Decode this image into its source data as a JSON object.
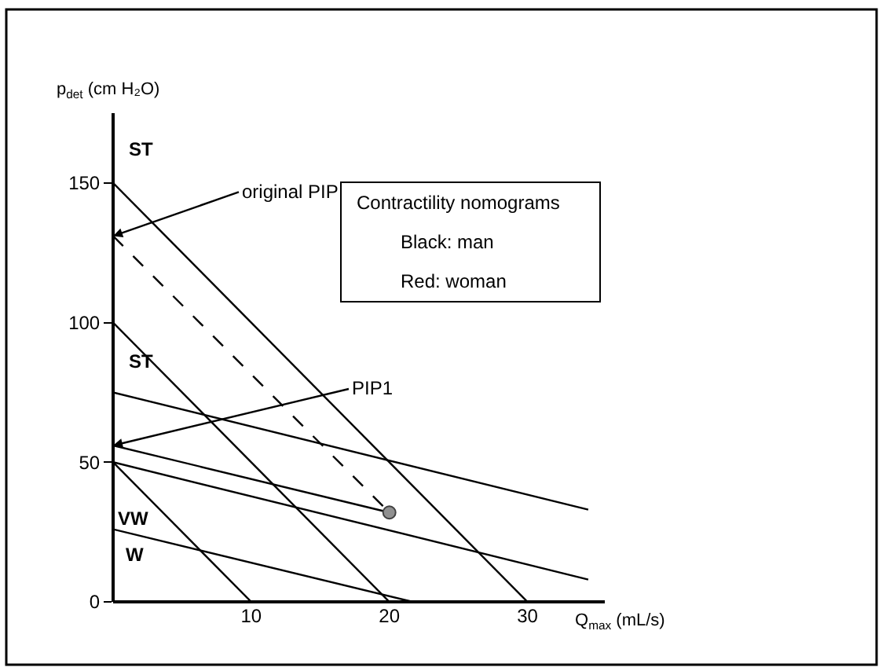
{
  "chart_data": {
    "type": "line",
    "xlabel": "Q$_{max}$ (mL/s)",
    "ylabel": "p$_{det}$ (cm H₂O)",
    "xlim": [
      0,
      35.6
    ],
    "ylim": [
      0,
      175
    ],
    "xticks": [
      10,
      20,
      30
    ],
    "yticks": [
      0,
      50,
      100,
      150
    ],
    "series": [
      {
        "type": "line",
        "color": "#000000",
        "line_style": "solid",
        "marker": "none",
        "x": [
          0,
          30
        ],
        "values": [
          150,
          0
        ]
      },
      {
        "type": "line",
        "color": "#000000",
        "line_style": "solid",
        "marker": "none",
        "x": [
          0,
          20
        ],
        "values": [
          100,
          0
        ]
      },
      {
        "type": "line",
        "color": "#000000",
        "line_style": "solid",
        "marker": "none",
        "x": [
          0,
          10
        ],
        "values": [
          50,
          0
        ]
      },
      {
        "type": "line",
        "color": "#000000",
        "line_style": "solid",
        "marker": "none",
        "x": [
          0,
          34.4
        ],
        "values": [
          75,
          33
        ]
      },
      {
        "type": "line",
        "color": "#000000",
        "line_style": "solid",
        "marker": "none",
        "x": [
          0,
          34.4
        ],
        "values": [
          50,
          8
        ]
      },
      {
        "type": "line",
        "color": "#000000",
        "line_style": "solid",
        "marker": "none",
        "x": [
          0,
          21.7
        ],
        "values": [
          26,
          0
        ]
      },
      {
        "type": "line",
        "color": "#000000",
        "line_style": "dashed",
        "marker": "none",
        "x": [
          0,
          20
        ],
        "values": [
          131,
          32
        ]
      },
      {
        "type": "line",
        "color": "#000000",
        "line_style": "solid",
        "marker": "none",
        "x": [
          0,
          20
        ],
        "values": [
          56,
          32
        ]
      },
      {
        "type": "scatter",
        "color": "#909090",
        "marker": "circle",
        "x": [
          20
        ],
        "values": [
          32
        ]
      }
    ],
    "annotations": [
      "ST",
      "ST",
      "VW",
      "W",
      {
        "text": "original PIP",
        "x": 0,
        "y": 131
      },
      {
        "text": "PIP1",
        "x": 0,
        "y": 56
      },
      "Contractility nomograms",
      "Black: man",
      "Red: woman"
    ]
  }
}
